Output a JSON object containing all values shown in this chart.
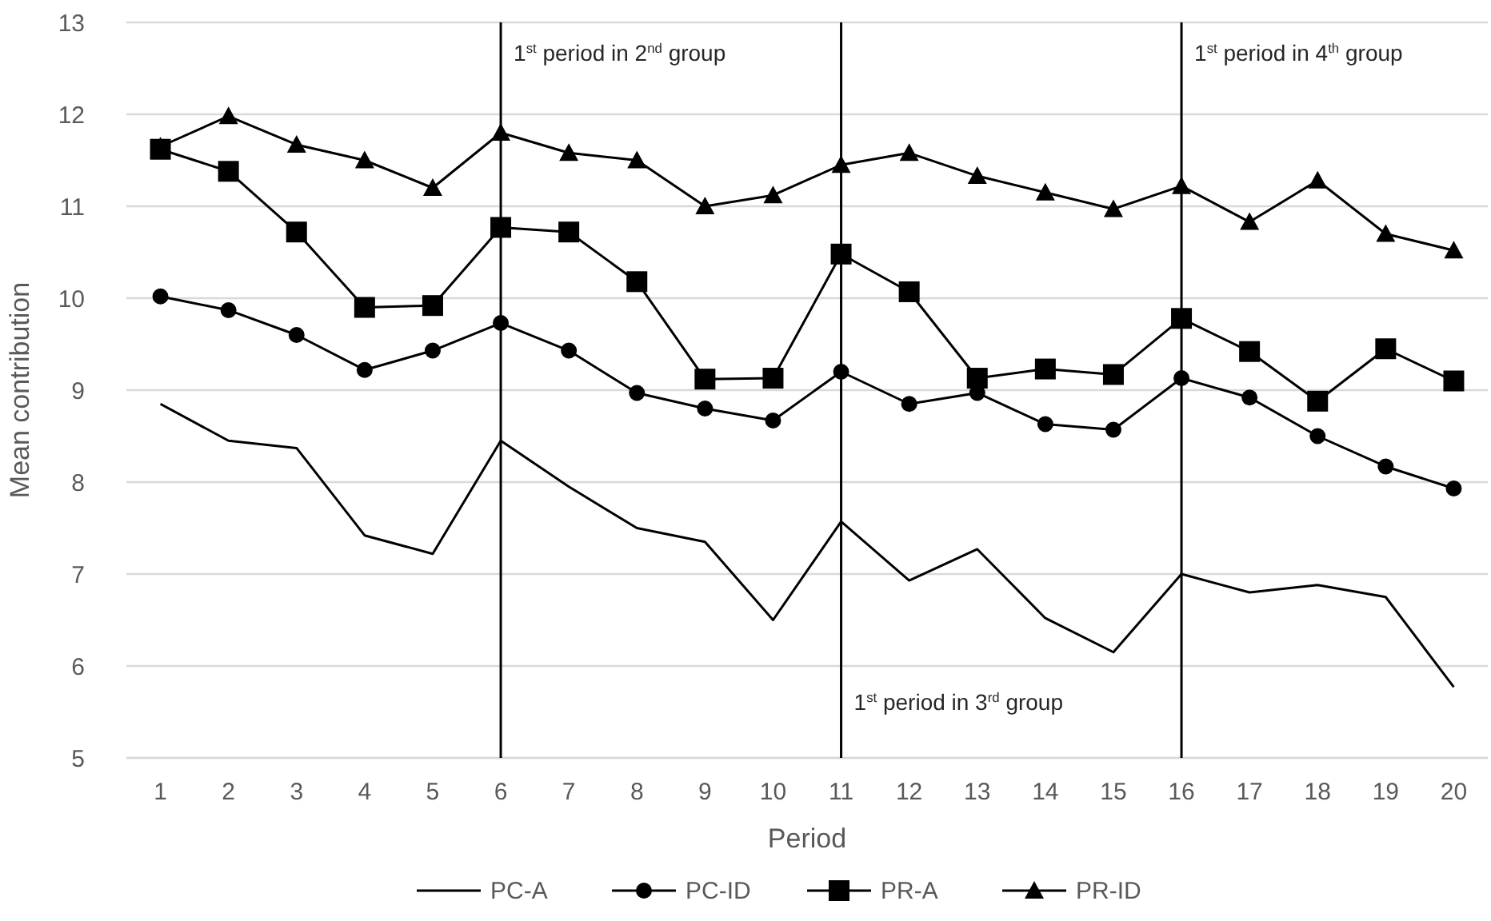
{
  "chart_data": {
    "type": "line",
    "xlabel": "Period",
    "ylabel": "Mean contribution",
    "x": [
      1,
      2,
      3,
      4,
      5,
      6,
      7,
      8,
      9,
      10,
      11,
      12,
      13,
      14,
      15,
      16,
      17,
      18,
      19,
      20
    ],
    "xlim": [
      0.5,
      20.5
    ],
    "xticks": [
      1,
      2,
      3,
      4,
      5,
      6,
      7,
      8,
      9,
      10,
      11,
      12,
      13,
      14,
      15,
      16,
      17,
      18,
      19,
      20
    ],
    "ylim": [
      5,
      13
    ],
    "yticks": [
      5,
      6,
      7,
      8,
      9,
      10,
      11,
      12,
      13
    ],
    "grid": "y",
    "legend": "bottom",
    "series": [
      {
        "name": "PC-A",
        "color": "#000000",
        "marker": "none",
        "values": [
          8.85,
          8.45,
          8.37,
          7.42,
          7.22,
          8.45,
          7.95,
          7.5,
          7.35,
          6.5,
          7.57,
          6.93,
          7.27,
          6.52,
          6.15,
          7.0,
          6.8,
          6.88,
          6.75,
          5.77
        ]
      },
      {
        "name": "PC-ID",
        "color": "#000000",
        "marker": "circle",
        "values": [
          10.02,
          9.87,
          9.6,
          9.22,
          9.43,
          9.73,
          9.43,
          8.97,
          8.8,
          8.67,
          9.2,
          8.85,
          8.97,
          8.63,
          8.57,
          9.13,
          8.92,
          8.5,
          8.17,
          7.93
        ]
      },
      {
        "name": "PR-A",
        "color": "#000000",
        "marker": "square",
        "values": [
          11.62,
          11.38,
          10.72,
          9.9,
          9.92,
          10.77,
          10.72,
          10.18,
          9.12,
          9.13,
          10.48,
          10.07,
          9.13,
          9.23,
          9.17,
          9.78,
          9.42,
          8.88,
          9.45,
          9.1
        ]
      },
      {
        "name": "PR-ID",
        "color": "#000000",
        "marker": "triangle",
        "values": [
          11.65,
          11.98,
          11.67,
          11.5,
          11.2,
          11.8,
          11.58,
          11.5,
          11.0,
          11.12,
          11.45,
          11.58,
          11.33,
          11.15,
          10.97,
          11.22,
          10.83,
          11.28,
          10.7,
          10.52
        ]
      }
    ],
    "ref_lines": [
      {
        "axis": "x",
        "value": 6,
        "label": "1$^{st}$ period in 2$^{nd}$ group",
        "color": "#000000"
      },
      {
        "axis": "x",
        "value": 11,
        "label": "1$^{st}$ period in 3$^{rd}$ group",
        "color": "#000000"
      },
      {
        "axis": "x",
        "value": 16,
        "label": "1$^{st}$ period in 4$^{th}$ group",
        "color": "#000000"
      }
    ]
  }
}
